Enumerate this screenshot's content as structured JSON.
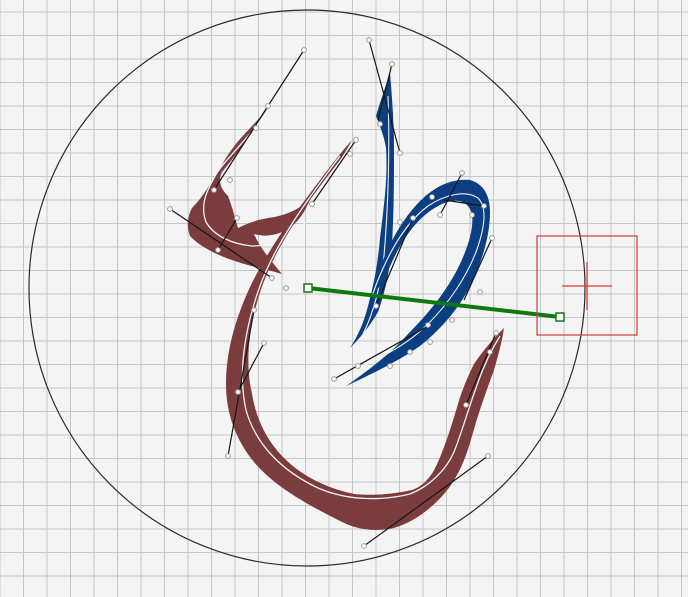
{
  "canvas": {
    "background": "#f4f4f4",
    "grid_color": "#c6c6c6",
    "circle_color": "#2a2a2a",
    "stroke_red": "#7a3c3c",
    "stroke_blue": "#0b3f82",
    "handle_line_color": "#151515",
    "handle_point_color": "#9a9a9a",
    "spine_color": "#f2f2f2",
    "measure_line_color": "#0e7a0e",
    "selection_box_color": "#d23a3a"
  }
}
